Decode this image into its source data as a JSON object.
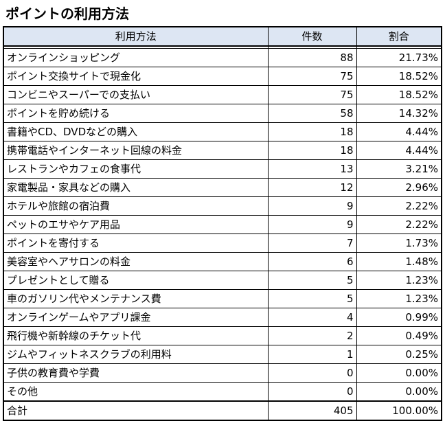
{
  "title": "ポイントの利用方法",
  "table": {
    "headers": [
      "利用方法",
      "件数",
      "割合"
    ],
    "rows": [
      {
        "name": "オンラインショッピング",
        "count": "88",
        "pct": "21.73%"
      },
      {
        "name": "ポイント交換サイトで現金化",
        "count": "75",
        "pct": "18.52%"
      },
      {
        "name": "コンビニやスーパーでの支払い",
        "count": "75",
        "pct": "18.52%"
      },
      {
        "name": "ポイントを貯め続ける",
        "count": "58",
        "pct": "14.32%"
      },
      {
        "name": "書籍やCD、DVDなどの購入",
        "count": "18",
        "pct": "4.44%"
      },
      {
        "name": "携帯電話やインターネット回線の料金",
        "count": "18",
        "pct": "4.44%"
      },
      {
        "name": "レストランやカフェの食事代",
        "count": "13",
        "pct": "3.21%"
      },
      {
        "name": "家電製品・家具などの購入",
        "count": "12",
        "pct": "2.96%"
      },
      {
        "name": "ホテルや旅館の宿泊費",
        "count": "9",
        "pct": "2.22%"
      },
      {
        "name": "ペットのエサやケア用品",
        "count": "9",
        "pct": "2.22%"
      },
      {
        "name": "ポイントを寄付する",
        "count": "7",
        "pct": "1.73%"
      },
      {
        "name": "美容室やヘアサロンの料金",
        "count": "6",
        "pct": "1.48%"
      },
      {
        "name": "プレゼントとして贈る",
        "count": "5",
        "pct": "1.23%"
      },
      {
        "name": "車のガソリン代やメンテナンス費",
        "count": "5",
        "pct": "1.23%"
      },
      {
        "name": "オンラインゲームやアプリ課金",
        "count": "4",
        "pct": "0.99%"
      },
      {
        "name": "飛行機や新幹線のチケット代",
        "count": "2",
        "pct": "0.49%"
      },
      {
        "name": "ジムやフィットネスクラブの利用料",
        "count": "1",
        "pct": "0.25%"
      },
      {
        "name": "子供の教育費や学費",
        "count": "0",
        "pct": "0.00%"
      },
      {
        "name": "その他",
        "count": "0",
        "pct": "0.00%"
      }
    ],
    "total": {
      "name": "合計",
      "count": "405",
      "pct": "100.00%"
    }
  }
}
